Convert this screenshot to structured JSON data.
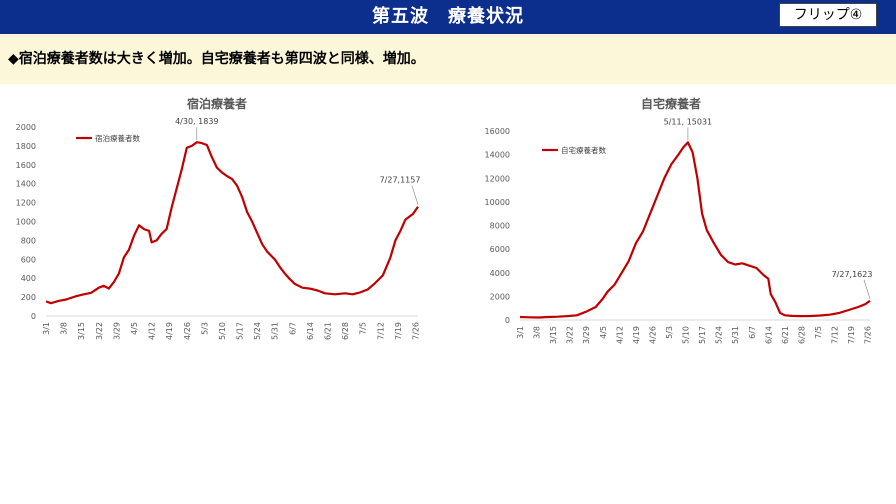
{
  "header": {
    "title": "第五波　療養状況",
    "flip_label": "フリップ④"
  },
  "headline": "◆宿泊療養者数は大きく増加。自宅療養者も第四波と同様、増加。",
  "colors": {
    "header_bg": "#0c2e8c",
    "band_bg": "#fdf7d9",
    "series": "#c00000"
  },
  "chart_data": [
    {
      "type": "line",
      "title": "宿泊療養者",
      "series": [
        {
          "name": "宿泊療養者数",
          "color": "#c00000",
          "points": [
            [
              "3/1",
              155
            ],
            [
              "3/3",
              135
            ],
            [
              "3/6",
              160
            ],
            [
              "3/9",
              175
            ],
            [
              "3/13",
              210
            ],
            [
              "3/16",
              230
            ],
            [
              "3/19",
              245
            ],
            [
              "3/22",
              300
            ],
            [
              "3/24",
              320
            ],
            [
              "3/26",
              290
            ],
            [
              "3/28",
              360
            ],
            [
              "3/30",
              450
            ],
            [
              "4/1",
              620
            ],
            [
              "4/3",
              700
            ],
            [
              "4/5",
              850
            ],
            [
              "4/7",
              960
            ],
            [
              "4/9",
              920
            ],
            [
              "4/11",
              900
            ],
            [
              "4/12",
              780
            ],
            [
              "4/14",
              800
            ],
            [
              "4/16",
              870
            ],
            [
              "4/18",
              920
            ],
            [
              "4/20",
              1150
            ],
            [
              "4/22",
              1350
            ],
            [
              "4/24",
              1550
            ],
            [
              "4/26",
              1780
            ],
            [
              "4/28",
              1800
            ],
            [
              "4/30",
              1839
            ],
            [
              "5/2",
              1830
            ],
            [
              "5/4",
              1810
            ],
            [
              "5/6",
              1680
            ],
            [
              "5/8",
              1570
            ],
            [
              "5/10",
              1520
            ],
            [
              "5/12",
              1480
            ],
            [
              "5/14",
              1450
            ],
            [
              "5/16",
              1380
            ],
            [
              "5/18",
              1260
            ],
            [
              "5/20",
              1100
            ],
            [
              "5/22",
              1000
            ],
            [
              "5/24",
              880
            ],
            [
              "5/26",
              760
            ],
            [
              "5/28",
              680
            ],
            [
              "5/31",
              600
            ],
            [
              "6/2",
              520
            ],
            [
              "6/4",
              450
            ],
            [
              "6/6",
              390
            ],
            [
              "6/8",
              340
            ],
            [
              "6/11",
              300
            ],
            [
              "6/14",
              290
            ],
            [
              "6/17",
              270
            ],
            [
              "6/20",
              240
            ],
            [
              "6/24",
              230
            ],
            [
              "6/28",
              240
            ],
            [
              "7/1",
              230
            ],
            [
              "7/4",
              250
            ],
            [
              "7/7",
              280
            ],
            [
              "7/10",
              350
            ],
            [
              "7/13",
              430
            ],
            [
              "7/16",
              620
            ],
            [
              "7/18",
              800
            ],
            [
              "7/20",
              900
            ],
            [
              "7/22",
              1020
            ],
            [
              "7/25",
              1080
            ],
            [
              "7/27",
              1157
            ]
          ]
        }
      ],
      "x_ticks": [
        "3/1",
        "3/8",
        "3/15",
        "3/22",
        "3/29",
        "4/5",
        "4/12",
        "4/19",
        "4/26",
        "5/3",
        "5/10",
        "5/17",
        "5/24",
        "5/31",
        "6/7",
        "6/14",
        "6/21",
        "6/28",
        "7/5",
        "7/12",
        "7/19",
        "7/26"
      ],
      "ylim": [
        0,
        2000
      ],
      "y_ticks": [
        "0",
        "200",
        "400",
        "600",
        "800",
        "1000",
        "1200",
        "1400",
        "1600",
        "1800",
        "2000"
      ],
      "annotations": [
        {
          "text": "4/30, 1839",
          "x": "4/30",
          "y": 1839
        },
        {
          "text": "7/27,1157",
          "x": "7/27",
          "y": 1157
        }
      ],
      "legend": "top-left",
      "grid": false
    },
    {
      "type": "line",
      "title": "自宅療養者",
      "series": [
        {
          "name": "自宅療養者数",
          "color": "#c00000",
          "points": [
            [
              "3/1",
              250
            ],
            [
              "3/5",
              230
            ],
            [
              "3/9",
              210
            ],
            [
              "3/13",
              250
            ],
            [
              "3/17",
              280
            ],
            [
              "3/21",
              330
            ],
            [
              "3/25",
              400
            ],
            [
              "3/29",
              700
            ],
            [
              "4/2",
              1100
            ],
            [
              "4/5",
              1800
            ],
            [
              "4/7",
              2400
            ],
            [
              "4/10",
              3000
            ],
            [
              "4/13",
              4000
            ],
            [
              "4/16",
              5000
            ],
            [
              "4/19",
              6500
            ],
            [
              "4/22",
              7500
            ],
            [
              "4/25",
              9000
            ],
            [
              "4/28",
              10500
            ],
            [
              "5/1",
              12000
            ],
            [
              "5/4",
              13200
            ],
            [
              "5/7",
              14000
            ],
            [
              "5/9",
              14600
            ],
            [
              "5/11",
              15031
            ],
            [
              "5/13",
              14200
            ],
            [
              "5/15",
              12000
            ],
            [
              "5/17",
              9000
            ],
            [
              "5/19",
              7600
            ],
            [
              "5/22",
              6500
            ],
            [
              "5/25",
              5500
            ],
            [
              "5/28",
              4900
            ],
            [
              "5/31",
              4700
            ],
            [
              "6/3",
              4800
            ],
            [
              "6/6",
              4600
            ],
            [
              "6/9",
              4400
            ],
            [
              "6/12",
              3800
            ],
            [
              "6/14",
              3500
            ],
            [
              "6/15",
              2200
            ],
            [
              "6/17",
              1500
            ],
            [
              "6/19",
              600
            ],
            [
              "6/21",
              400
            ],
            [
              "6/24",
              350
            ],
            [
              "6/28",
              330
            ],
            [
              "7/2",
              340
            ],
            [
              "7/6",
              380
            ],
            [
              "7/10",
              450
            ],
            [
              "7/14",
              600
            ],
            [
              "7/18",
              850
            ],
            [
              "7/22",
              1100
            ],
            [
              "7/25",
              1350
            ],
            [
              "7/27",
              1623
            ]
          ]
        }
      ],
      "x_ticks": [
        "3/1",
        "3/8",
        "3/15",
        "3/22",
        "3/29",
        "4/5",
        "4/12",
        "4/19",
        "4/26",
        "5/3",
        "5/10",
        "5/17",
        "5/24",
        "5/31",
        "6/7",
        "6/14",
        "6/21",
        "6/28",
        "7/5",
        "7/12",
        "7/19",
        "7/26"
      ],
      "ylim": [
        0,
        16000
      ],
      "y_ticks": [
        "0",
        "2000",
        "4000",
        "6000",
        "8000",
        "10000",
        "12000",
        "14000",
        "16000"
      ],
      "annotations": [
        {
          "text": "5/11,  15031",
          "x": "5/11",
          "y": 15031
        },
        {
          "text": "7/27,1623",
          "x": "7/27",
          "y": 1623
        }
      ],
      "legend": "top-left",
      "grid": false
    }
  ]
}
